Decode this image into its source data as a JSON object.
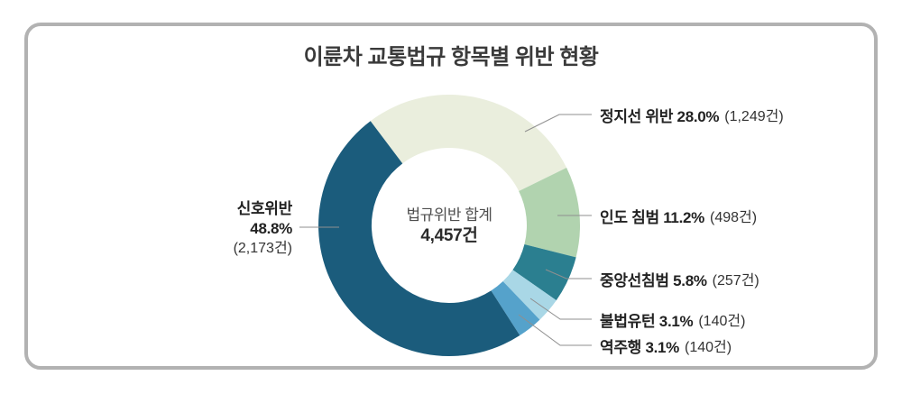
{
  "title": "이륜차 교통법규 항목별 위반 현황",
  "card_border_color": "#b2b2b2",
  "leader_line_color": "#8f8f8f",
  "chart_data": {
    "type": "pie",
    "subtype": "donut",
    "title": "이륜차 교통법규 항목별 위반 현황",
    "unit": "건",
    "total": 4457,
    "start_angle_deg": -37,
    "center_label": {
      "line1": "법규위반 합계",
      "line2": "4,457건"
    },
    "segments": [
      {
        "key": "stop-line-violation",
        "name": "정지선 위반",
        "pct": 28.0,
        "count": 1249,
        "color": "#eaeedd",
        "label_bold": "정지선 위반 28.0%",
        "label_paren": "(1,249건)"
      },
      {
        "key": "sidewalk-encroachment",
        "name": "인도 침범",
        "pct": 11.2,
        "count": 498,
        "color": "#b1d3af",
        "label_bold": "인도 침범 11.2%",
        "label_paren": "(498건)"
      },
      {
        "key": "center-line-violation",
        "name": "중앙선침범",
        "pct": 5.8,
        "count": 257,
        "color": "#2b7f90",
        "label_bold": "중앙선침범 5.8%",
        "label_paren": "(257건)"
      },
      {
        "key": "illegal-u-turn",
        "name": "불법유턴",
        "pct": 3.1,
        "count": 140,
        "color": "#a9d7e6",
        "label_bold": "불법유턴 3.1%",
        "label_paren": "(140건)"
      },
      {
        "key": "wrong-way-driving",
        "name": "역주행",
        "pct": 3.1,
        "count": 140,
        "color": "#55a2cb",
        "label_bold": "역주행 3.1%",
        "label_paren": "(140건)"
      },
      {
        "key": "signal-violation",
        "name": "신호위반",
        "pct": 48.8,
        "count": 2173,
        "color": "#1b5c7c",
        "label_line1": "신호위반",
        "label_line2": "48.8%",
        "label_paren": "(2,173건)"
      }
    ]
  }
}
